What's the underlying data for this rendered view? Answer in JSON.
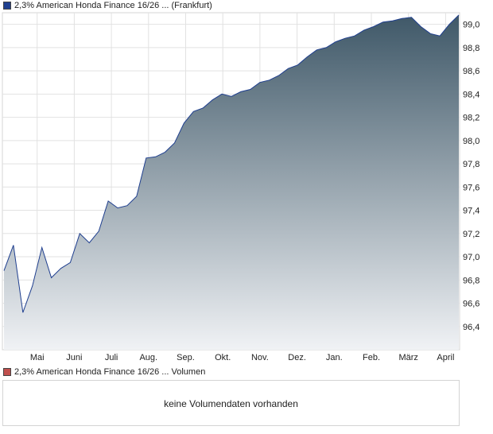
{
  "legend": {
    "price_label": "2,3% American Honda Finance 16/26 ... (Frankfurt)",
    "price_color": "#1f3f8f",
    "volume_label": "2,3% American Honda Finance 16/26 ... Volumen",
    "volume_color": "#c0504d"
  },
  "volume": {
    "message": "keine Volumendaten vorhanden"
  },
  "chart_data": {
    "type": "area",
    "title": "2,3% American Honda Finance 16/26 ... (Frankfurt)",
    "xlabel": "",
    "ylabel": "",
    "ylim": [
      96.2,
      99.1
    ],
    "x_ticks": [
      "Mai",
      "Juni",
      "Juli",
      "Aug.",
      "Sep.",
      "Okt.",
      "Nov.",
      "Dez.",
      "Jan.",
      "Feb.",
      "März",
      "April"
    ],
    "y_ticks": [
      96.4,
      96.6,
      96.8,
      97.0,
      97.2,
      97.4,
      97.6,
      97.8,
      98.0,
      98.2,
      98.4,
      98.6,
      98.8,
      99.0
    ],
    "y_tick_labels": [
      "96,4",
      "96,6",
      "96,8",
      "97,0",
      "97,2",
      "97,4",
      "97,6",
      "97,8",
      "98,0",
      "98,2",
      "98,4",
      "98,6",
      "98,8",
      "99,0"
    ],
    "grid": true,
    "series": [
      {
        "color": "#1f3f8f",
        "fill_top": "#3f5868",
        "fill_bottom": "#f0f2f5",
        "x": [
          "Apr. W3",
          "Apr. W4",
          "Apr. W5",
          "Mai W1",
          "Mai W2",
          "Mai W3",
          "Mai W4",
          "Juni W1",
          "Juni W2",
          "Juni W3",
          "Juni W4",
          "Juli W1",
          "Juli W2",
          "Juli W3",
          "Juli W4",
          "Aug. W1",
          "Aug. W2",
          "Aug. W3",
          "Aug. W4",
          "Sep. W1",
          "Sep. W2",
          "Sep. W3",
          "Sep. W4",
          "Okt. W1",
          "Okt. W2",
          "Okt. W3",
          "Okt. W4",
          "Nov. W1",
          "Nov. W2",
          "Nov. W3",
          "Nov. W4",
          "Dez. W1",
          "Dez. W2",
          "Dez. W3",
          "Dez. W4",
          "Jan. W1",
          "Jan. W2",
          "Jan. W3",
          "Jan. W4",
          "Feb. W1",
          "Feb. W2",
          "Feb. W3",
          "Feb. W4",
          "März W1",
          "März W2",
          "März W3",
          "März W4",
          "April W1",
          "April W2"
        ],
        "values": [
          96.88,
          97.1,
          96.52,
          96.75,
          97.08,
          96.82,
          96.9,
          96.95,
          97.2,
          97.12,
          97.22,
          97.48,
          97.42,
          97.44,
          97.52,
          97.85,
          97.86,
          97.9,
          97.98,
          98.15,
          98.25,
          98.28,
          98.35,
          98.4,
          98.38,
          98.42,
          98.44,
          98.5,
          98.52,
          98.56,
          98.62,
          98.65,
          98.72,
          98.78,
          98.8,
          98.85,
          98.88,
          98.9,
          98.95,
          98.98,
          99.02,
          99.03,
          99.05,
          99.06,
          98.98,
          98.92,
          98.9,
          99.0,
          99.08
        ]
      }
    ]
  }
}
